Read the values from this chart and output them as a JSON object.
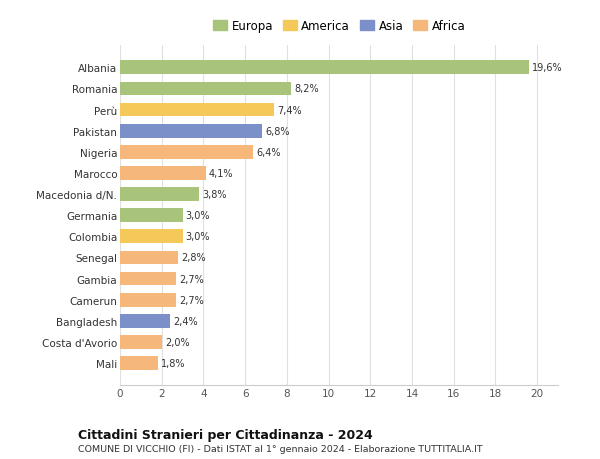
{
  "categories": [
    "Mali",
    "Costa d'Avorio",
    "Bangladesh",
    "Camerun",
    "Gambia",
    "Senegal",
    "Colombia",
    "Germania",
    "Macedonia d/N.",
    "Marocco",
    "Nigeria",
    "Pakistan",
    "Perù",
    "Romania",
    "Albania"
  ],
  "values": [
    1.8,
    2.0,
    2.4,
    2.7,
    2.7,
    2.8,
    3.0,
    3.0,
    3.8,
    4.1,
    6.4,
    6.8,
    7.4,
    8.2,
    19.6
  ],
  "colors": [
    "#f5b87a",
    "#f5b87a",
    "#7b8fc9",
    "#f5b87a",
    "#f5b87a",
    "#f5b87a",
    "#f5c85a",
    "#a8c47a",
    "#a8c47a",
    "#f5b87a",
    "#f5b87a",
    "#7b8fc9",
    "#f5c85a",
    "#a8c47a",
    "#a8c47a"
  ],
  "labels": [
    "1,8%",
    "2,0%",
    "2,4%",
    "2,7%",
    "2,7%",
    "2,8%",
    "3,0%",
    "3,0%",
    "3,8%",
    "4,1%",
    "6,4%",
    "6,8%",
    "7,4%",
    "8,2%",
    "19,6%"
  ],
  "legend": [
    {
      "label": "Europa",
      "color": "#a8c47a"
    },
    {
      "label": "America",
      "color": "#f5c85a"
    },
    {
      "label": "Asia",
      "color": "#7b8fc9"
    },
    {
      "label": "Africa",
      "color": "#f5b87a"
    }
  ],
  "xlim": [
    0,
    21
  ],
  "xticks": [
    0,
    2,
    4,
    6,
    8,
    10,
    12,
    14,
    16,
    18,
    20
  ],
  "title": "Cittadini Stranieri per Cittadinanza - 2024",
  "subtitle": "COMUNE DI VICCHIO (FI) - Dati ISTAT al 1° gennaio 2024 - Elaborazione TUTTITALIA.IT",
  "background_color": "#ffffff",
  "grid_color": "#e0e0e0",
  "bar_height": 0.65
}
